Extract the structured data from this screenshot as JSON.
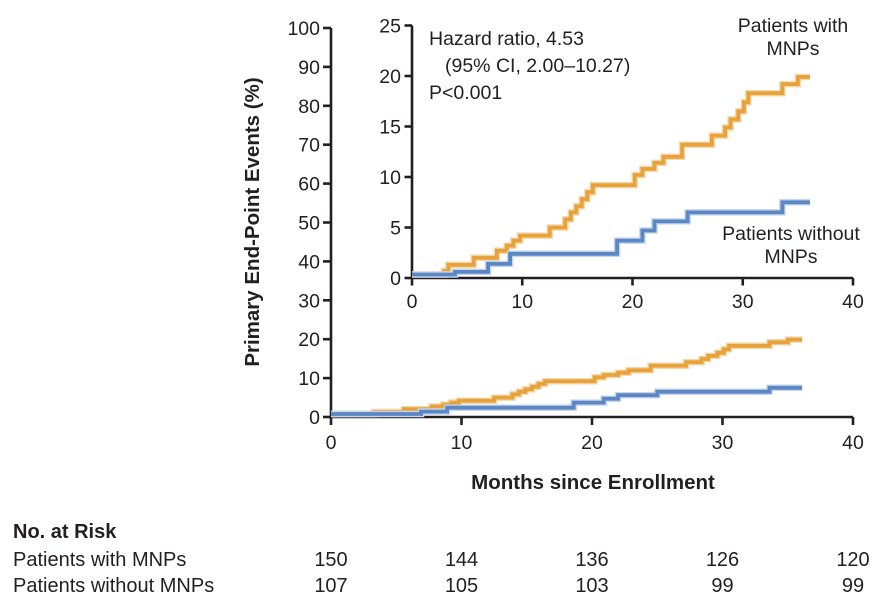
{
  "chart_data": {
    "type": "line",
    "subtype": "step",
    "x_label": "Months since Enrollment",
    "y_label": "Primary End-Point Events (%)",
    "x_ticks": [
      0,
      10,
      20,
      30,
      40
    ],
    "main_axis": {
      "xlim": [
        0,
        40
      ],
      "ylim": [
        0,
        100
      ],
      "yticks": [
        0,
        10,
        20,
        30,
        40,
        50,
        60,
        70,
        80,
        90,
        100
      ]
    },
    "inset_axis": {
      "xlim": [
        0,
        40
      ],
      "ylim": [
        0,
        25
      ],
      "yticks": [
        0,
        5,
        10,
        15,
        20,
        25
      ]
    },
    "grid": false,
    "legend_position": "inline-labels",
    "axis_color": "#231F20",
    "annotation": [
      "Hazard ratio, 4.53",
      "(95% CI, 2.00–10.27)",
      "P<0.001"
    ],
    "series": [
      {
        "name": "Patients with MNPs",
        "label_lines": [
          "Patients with",
          "MNPs"
        ],
        "color": "#E8A23C",
        "halo_color": "#F3D8A9",
        "points": [
          [
            0,
            0
          ],
          [
            2.9,
            0.7
          ],
          [
            3.3,
            1.3
          ],
          [
            5.6,
            2.0
          ],
          [
            7.7,
            2.7
          ],
          [
            8.6,
            3.2
          ],
          [
            9.2,
            3.7
          ],
          [
            9.8,
            4.2
          ],
          [
            12.5,
            5.0
          ],
          [
            13.9,
            5.8
          ],
          [
            14.4,
            6.5
          ],
          [
            14.9,
            7.1
          ],
          [
            15.4,
            7.8
          ],
          [
            15.9,
            8.5
          ],
          [
            16.4,
            9.2
          ],
          [
            20.2,
            10.2
          ],
          [
            20.9,
            10.8
          ],
          [
            22.0,
            11.4
          ],
          [
            22.8,
            12.0
          ],
          [
            24.5,
            13.2
          ],
          [
            27.2,
            14.1
          ],
          [
            28.4,
            14.9
          ],
          [
            28.9,
            15.7
          ],
          [
            29.6,
            16.5
          ],
          [
            30.1,
            17.4
          ],
          [
            30.5,
            18.3
          ],
          [
            33.6,
            19.2
          ],
          [
            35.0,
            19.9
          ],
          [
            36.1,
            19.9
          ]
        ]
      },
      {
        "name": "Patients without MNPs",
        "label_lines": [
          "Patients without",
          "MNPs"
        ],
        "color": "#5B87C5",
        "halo_color": "#C7D5EC",
        "points": [
          [
            0,
            0
          ],
          [
            3.9,
            0.6
          ],
          [
            6.9,
            1.4
          ],
          [
            8.9,
            2.4
          ],
          [
            18.6,
            3.7
          ],
          [
            20.9,
            4.7
          ],
          [
            22.0,
            5.6
          ],
          [
            25.0,
            6.5
          ],
          [
            33.6,
            7.5
          ],
          [
            36.1,
            7.5
          ]
        ]
      }
    ]
  },
  "risk_table": {
    "heading": "No. at Risk",
    "months": [
      0,
      10,
      20,
      30,
      40
    ],
    "rows": [
      {
        "label": "Patients with MNPs",
        "values": [
          "150",
          "144",
          "136",
          "126",
          "120"
        ]
      },
      {
        "label": "Patients without MNPs",
        "values": [
          "107",
          "105",
          "103",
          "99",
          "99"
        ]
      }
    ]
  }
}
